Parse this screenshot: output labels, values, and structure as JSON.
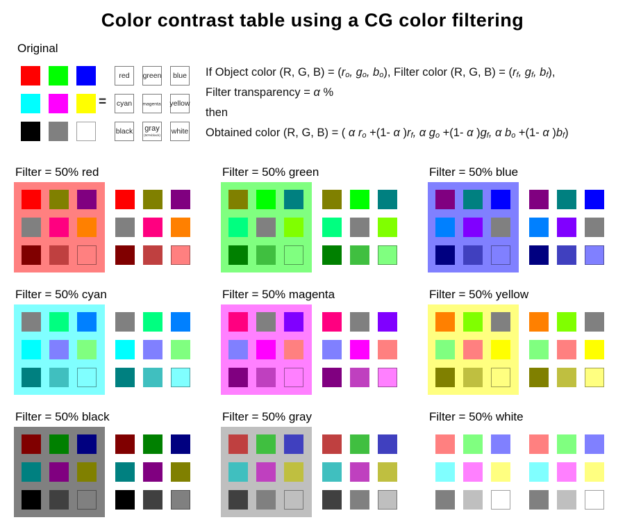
{
  "title": "Color contrast table using a CG color filtering",
  "original": {
    "label": "Original",
    "equals": "=",
    "colors": [
      "#ff0000",
      "#00ff00",
      "#0000ff",
      "#00ffff",
      "#ff00ff",
      "#ffff00",
      "#000000",
      "#808080",
      "#ffffff"
    ],
    "names": [
      "red",
      "green",
      "blue",
      "cyan",
      "magenta",
      "yellow",
      "black",
      "gray",
      "white"
    ],
    "gray_note": "(50%black)"
  },
  "formula": {
    "lines": [
      [
        {
          "t": "If Object color (R, G, B) = ("
        },
        {
          "t": "r",
          "s": "i"
        },
        {
          "t": "o",
          "s": "sub"
        },
        {
          "t": ", ",
          "s": "i"
        },
        {
          "t": "g",
          "s": "i"
        },
        {
          "t": "o",
          "s": "sub"
        },
        {
          "t": ", ",
          "s": "i"
        },
        {
          "t": "b",
          "s": "i"
        },
        {
          "t": "o",
          "s": "sub"
        },
        {
          "t": "), Filter color (R, G, B) = ("
        },
        {
          "t": "r",
          "s": "i"
        },
        {
          "t": "f",
          "s": "sub"
        },
        {
          "t": ", ",
          "s": "i"
        },
        {
          "t": "g",
          "s": "i"
        },
        {
          "t": "f",
          "s": "sub"
        },
        {
          "t": ", ",
          "s": "i"
        },
        {
          "t": "b",
          "s": "i"
        },
        {
          "t": "f",
          "s": "sub"
        },
        {
          "t": "),"
        }
      ],
      [
        {
          "t": "Filter transparency = "
        },
        {
          "t": "α",
          "s": "i"
        },
        {
          "t": " %"
        }
      ],
      [
        {
          "t": "then"
        }
      ],
      [
        {
          "t": "Obtained color (R, G, B) = ( "
        },
        {
          "t": "α",
          "s": "i"
        },
        {
          "t": " "
        },
        {
          "t": "r",
          "s": "i"
        },
        {
          "t": "o",
          "s": "sub"
        },
        {
          "t": " +(1- "
        },
        {
          "t": "α",
          "s": "i"
        },
        {
          "t": " )"
        },
        {
          "t": "r",
          "s": "i"
        },
        {
          "t": "f",
          "s": "sub"
        },
        {
          "t": ",  ",
          "s": "i"
        },
        {
          "t": "α",
          "s": "i"
        },
        {
          "t": " "
        },
        {
          "t": "g",
          "s": "i"
        },
        {
          "t": "o",
          "s": "sub"
        },
        {
          "t": " +(1- "
        },
        {
          "t": "α",
          "s": "i"
        },
        {
          "t": " )"
        },
        {
          "t": "g",
          "s": "i"
        },
        {
          "t": "f",
          "s": "sub"
        },
        {
          "t": ",  ",
          "s": "i"
        },
        {
          "t": "α",
          "s": "i"
        },
        {
          "t": " "
        },
        {
          "t": "b",
          "s": "i"
        },
        {
          "t": "o",
          "s": "sub"
        },
        {
          "t": " +(1- "
        },
        {
          "t": "α",
          "s": "i"
        },
        {
          "t": " )"
        },
        {
          "t": "b",
          "s": "i"
        },
        {
          "t": "f",
          "s": "sub"
        },
        {
          "t": ")"
        }
      ]
    ]
  },
  "sections": [
    {
      "key": "red",
      "label": "Filter = 50% red",
      "filter_color": "#ff0000",
      "bg": "#ff8080",
      "cells": [
        "#ff0000",
        "#808000",
        "#800080",
        "#808080",
        "#ff0080",
        "#ff8000",
        "#800000",
        "#bf4040",
        "#ff8080"
      ]
    },
    {
      "key": "green",
      "label": "Filter = 50% green",
      "filter_color": "#00ff00",
      "bg": "#80ff80",
      "cells": [
        "#808000",
        "#00ff00",
        "#008080",
        "#00ff80",
        "#808080",
        "#80ff00",
        "#008000",
        "#40bf40",
        "#80ff80"
      ]
    },
    {
      "key": "blue",
      "label": "Filter = 50% blue",
      "filter_color": "#0000ff",
      "bg": "#8080ff",
      "cells": [
        "#800080",
        "#008080",
        "#0000ff",
        "#0080ff",
        "#8000ff",
        "#808080",
        "#000080",
        "#4040bf",
        "#8080ff"
      ]
    },
    {
      "key": "cyan",
      "label": "Filter = 50% cyan",
      "filter_color": "#00ffff",
      "bg": "#80ffff",
      "cells": [
        "#808080",
        "#00ff80",
        "#0080ff",
        "#00ffff",
        "#8080ff",
        "#80ff80",
        "#008080",
        "#40bfbf",
        "#80ffff"
      ]
    },
    {
      "key": "magenta",
      "label": "Filter = 50% magenta",
      "filter_color": "#ff00ff",
      "bg": "#ff80ff",
      "cells": [
        "#ff0080",
        "#808080",
        "#8000ff",
        "#8080ff",
        "#ff00ff",
        "#ff8080",
        "#800080",
        "#bf40bf",
        "#ff80ff"
      ]
    },
    {
      "key": "yellow",
      "label": "Filter = 50% yellow",
      "filter_color": "#ffff00",
      "bg": "#ffff80",
      "cells": [
        "#ff8000",
        "#80ff00",
        "#808080",
        "#80ff80",
        "#ff8080",
        "#ffff00",
        "#808000",
        "#bfbf40",
        "#ffff80"
      ]
    },
    {
      "key": "black",
      "label": "Filter = 50% black",
      "filter_color": "#000000",
      "bg": "#808080",
      "cells": [
        "#800000",
        "#008000",
        "#000080",
        "#008080",
        "#800080",
        "#808000",
        "#000000",
        "#404040",
        "#808080"
      ]
    },
    {
      "key": "gray",
      "label": "Filter = 50% gray",
      "filter_color": "#808080",
      "bg": "#bfbfbf",
      "cells": [
        "#bf4040",
        "#40bf40",
        "#4040bf",
        "#40bfbf",
        "#bf40bf",
        "#bfbf40",
        "#404040",
        "#808080",
        "#bfbfbf"
      ]
    },
    {
      "key": "white",
      "label": "Filter = 50% white",
      "filter_color": "#ffffff",
      "bg": "#ffffff",
      "cells": [
        "#ff8080",
        "#80ff80",
        "#8080ff",
        "#80ffff",
        "#ff80ff",
        "#ffff80",
        "#808080",
        "#bfbfbf",
        "#ffffff"
      ]
    }
  ],
  "layout_note_colors": {
    "page_bg": "#ffffff",
    "text": "#000000"
  }
}
